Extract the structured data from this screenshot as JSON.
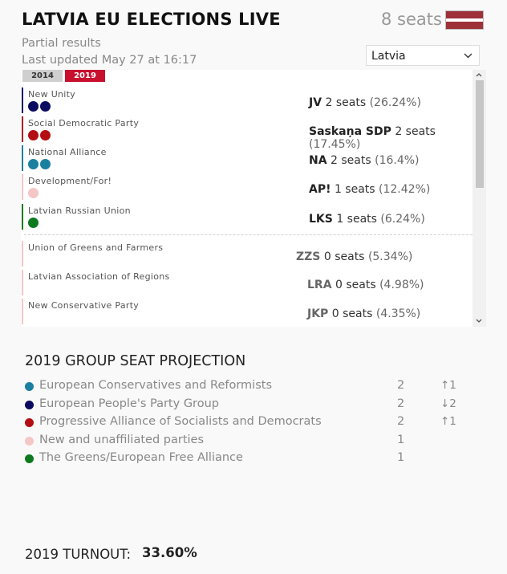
{
  "header": {
    "title": "LATVIA EU ELECTIONS LIVE",
    "seats_total": "8 seats",
    "flag_color": "#9e3039",
    "subtitle": "Partial results",
    "updated": "Last updated May 27 at 16:17"
  },
  "years": [
    {
      "label": "2014",
      "active": false
    },
    {
      "label": "2019",
      "active": true
    }
  ],
  "country_select": {
    "value": "Latvia"
  },
  "parties": [
    {
      "name": "New Unity",
      "abbr": "JV",
      "seats_text": "2 seats",
      "pct": "(26.24%)",
      "seats": 2,
      "color": "#0b0b60"
    },
    {
      "name": "Social Democratic Party",
      "abbr": "Saskaņa SDP",
      "seats_text": "2 seats",
      "pct": "(17.45%)",
      "seats": 2,
      "color": "#b30e14"
    },
    {
      "name": "National Alliance",
      "abbr": "NA",
      "seats_text": "2 seats",
      "pct": "(16.4%)",
      "seats": 2,
      "color": "#1b7fa0"
    },
    {
      "name": "Development/For!",
      "abbr": "AP!",
      "seats_text": "1 seats",
      "pct": "(12.42%)",
      "seats": 1,
      "color": "#f5c6c6"
    },
    {
      "name": "Latvian Russian Union",
      "abbr": "LKS",
      "seats_text": "1 seats",
      "pct": "(6.24%)",
      "seats": 1,
      "color": "#0e7a1e"
    },
    {
      "name": "Union of Greens and Farmers",
      "abbr": "ZZS",
      "seats_text": "0 seats",
      "pct": "(5.34%)",
      "seats": 0,
      "color": "#f5c6c6"
    },
    {
      "name": "Latvian Association of Regions",
      "abbr": "LRA",
      "seats_text": "0 seats",
      "pct": "(4.98%)",
      "seats": 0,
      "color": "#f5c6c6"
    },
    {
      "name": "New Conservative Party",
      "abbr": "JKP",
      "seats_text": "0 seats",
      "pct": "(4.35%)",
      "seats": 0,
      "color": "#f5c6c6"
    }
  ],
  "projection": {
    "title": "2019 GROUP SEAT PROJECTION",
    "groups": [
      {
        "name": "European Conservatives and Reformists",
        "seats": "2",
        "change": "↑1",
        "color": "#1b7fa0"
      },
      {
        "name": "European People's Party Group",
        "seats": "2",
        "change": "↓2",
        "color": "#0b0b60"
      },
      {
        "name": "Progressive Alliance of Socialists and Democrats",
        "seats": "2",
        "change": "↑1",
        "color": "#b30e14"
      },
      {
        "name": "New and unaffiliated parties",
        "seats": "1",
        "change": "",
        "color": "#f5c6c6"
      },
      {
        "name": "The Greens/European Free Alliance",
        "seats": "1",
        "change": "",
        "color": "#0e7a1e"
      }
    ]
  },
  "turnout": {
    "label": "2019 TURNOUT:",
    "value": "33.60%"
  }
}
